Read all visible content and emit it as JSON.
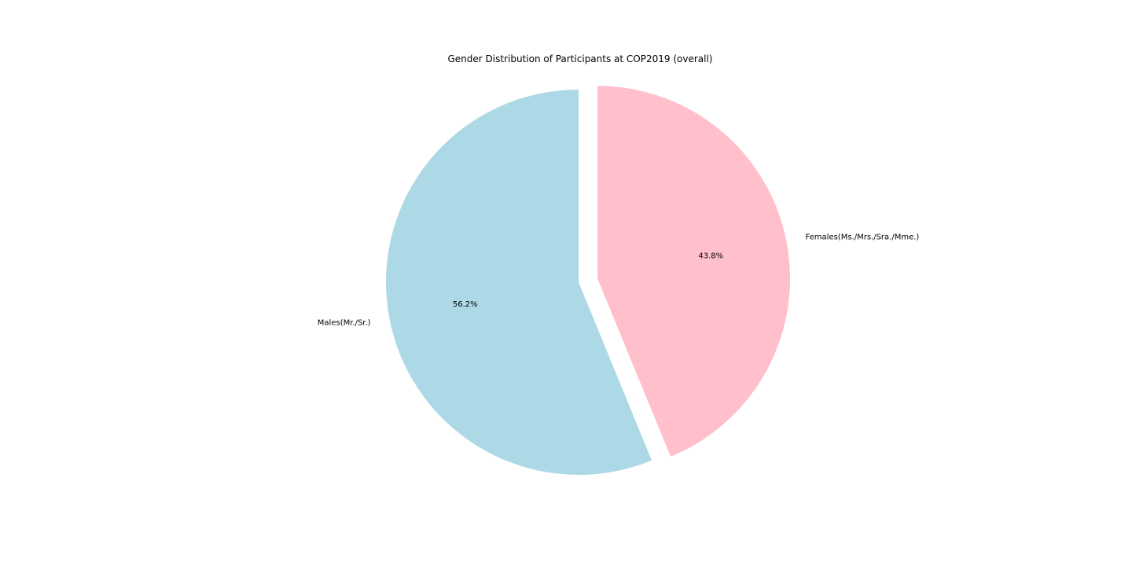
{
  "chart_data": {
    "type": "pie",
    "title": "Gender Distribution of Participants at COP2019 (overall)",
    "slices": [
      {
        "label": "Males(Mr./Sr.)",
        "value": 56.2,
        "pct_label": "56.2%",
        "color": "#add8e6",
        "exploded": false
      },
      {
        "label": "Females(Ms./Mrs./Sra./Mme.)",
        "value": 43.8,
        "pct_label": "43.8%",
        "color": "#ffc0cb",
        "exploded": true
      }
    ],
    "start_angle_deg": 90,
    "direction": "counterclockwise"
  }
}
